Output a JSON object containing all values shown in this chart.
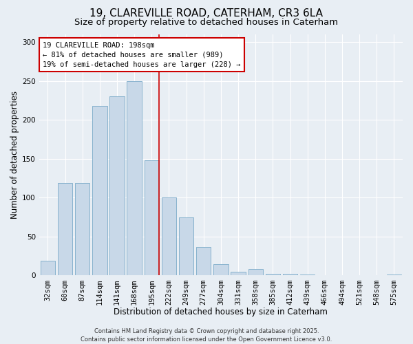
{
  "title1": "19, CLAREVILLE ROAD, CATERHAM, CR3 6LA",
  "title2": "Size of property relative to detached houses in Caterham",
  "xlabel": "Distribution of detached houses by size in Caterham",
  "ylabel": "Number of detached properties",
  "categories": [
    "32sqm",
    "60sqm",
    "87sqm",
    "114sqm",
    "141sqm",
    "168sqm",
    "195sqm",
    "222sqm",
    "249sqm",
    "277sqm",
    "304sqm",
    "331sqm",
    "358sqm",
    "385sqm",
    "412sqm",
    "439sqm",
    "466sqm",
    "494sqm",
    "521sqm",
    "548sqm",
    "575sqm"
  ],
  "values": [
    19,
    119,
    119,
    218,
    230,
    250,
    148,
    100,
    75,
    37,
    15,
    5,
    8,
    2,
    2,
    1,
    0,
    0,
    0,
    0,
    1
  ],
  "bar_color": "#c8d8e8",
  "bar_edge_color": "#7aaac8",
  "vline_color": "#cc0000",
  "vline_x_index": 6,
  "annotation_text": "19 CLAREVILLE ROAD: 198sqm\n← 81% of detached houses are smaller (989)\n19% of semi-detached houses are larger (228) →",
  "annotation_box_color": "#ffffff",
  "annotation_box_edge": "#cc0000",
  "footer_text": "Contains HM Land Registry data © Crown copyright and database right 2025.\nContains public sector information licensed under the Open Government Licence v3.0.",
  "ylim": [
    0,
    310
  ],
  "yticks": [
    0,
    50,
    100,
    150,
    200,
    250,
    300
  ],
  "background_color": "#e8eef4",
  "grid_color": "#ffffff",
  "title_fontsize": 11,
  "subtitle_fontsize": 9.5,
  "axis_fontsize": 8.5,
  "tick_fontsize": 7.5,
  "footer_fontsize": 6.0
}
